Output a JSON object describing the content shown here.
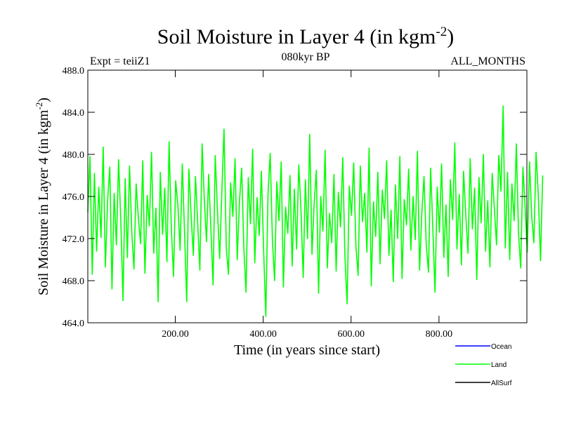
{
  "chart_data": {
    "type": "line",
    "title": "Soil Moisture in Layer 4 (in kgm",
    "title_sup": "-2",
    "title_end": ")",
    "subtitle": "080kyr BP",
    "left_label": "Expt = teiiZ1",
    "right_label": "ALL_MONTHS",
    "xlabel": "Time (in years since start)",
    "ylabel": "Soil Moisture in Layer 4 (in kgm",
    "ylabel_sup": "-2",
    "ylabel_end": ")",
    "xlim": [
      1,
      1000
    ],
    "ylim": [
      464.0,
      488.0
    ],
    "x_ticks": [
      200,
      400,
      600,
      800
    ],
    "x_tick_labels": [
      "200.00",
      "400.00",
      "600.00",
      "800.00"
    ],
    "y_ticks": [
      464,
      468,
      472,
      476,
      480,
      484,
      488
    ],
    "y_tick_labels": [
      "464.0",
      "468.0",
      "472.0",
      "476.0",
      "480.0",
      "484.0",
      "488.0"
    ],
    "legend_position": "bottom-right",
    "legend": [
      {
        "name": "Ocean",
        "color": "#0000ff"
      },
      {
        "name": "Land",
        "color": "#00ff00"
      },
      {
        "name": "AllSurf",
        "color": "#000000"
      }
    ],
    "series": [
      {
        "name": "Land",
        "color": "#00ff00",
        "x_start": 1,
        "x_step": 5,
        "values": [
          474.5,
          479.8,
          468.6,
          478.2,
          470.8,
          476.9,
          472.1,
          480.7,
          469.3,
          475.6,
          478.8,
          467.2,
          476.3,
          471.4,
          479.5,
          473.8,
          466.1,
          477.7,
          470.2,
          478.9,
          472.6,
          469.1,
          477.2,
          474.0,
          471.5,
          479.4,
          468.7,
          476.1,
          473.2,
          480.2,
          470.6,
          474.9,
          466.0,
          478.3,
          472.4,
          476.8,
          469.8,
          481.2,
          473.0,
          468.4,
          477.5,
          475.1,
          470.9,
          479.1,
          472.8,
          466.0,
          478.6,
          474.3,
          470.4,
          477.9,
          473.5,
          469.0,
          481.0,
          475.8,
          471.7,
          478.1,
          472.9,
          467.6,
          479.9,
          474.6,
          470.1,
          476.5,
          482.4,
          471.2,
          468.6,
          477.3,
          474.1,
          479.6,
          470.0,
          475.4,
          478.7,
          471.1,
          466.9,
          477.8,
          473.4,
          480.5,
          469.7,
          475.9,
          472.3,
          478.4,
          470.8,
          464.6,
          476.2,
          480.1,
          471.8,
          468.0,
          477.4,
          473.7,
          479.3,
          467.4,
          475.0,
          472.5,
          478.0,
          469.4,
          476.7,
          471.0,
          479.0,
          474.8,
          468.3,
          477.6,
          472.0,
          481.9,
          470.5,
          475.3,
          478.5,
          466.8,
          476.0,
          472.7,
          480.4,
          469.2,
          474.4,
          471.6,
          478.1,
          468.9,
          476.4,
          473.1,
          479.7,
          470.3,
          465.8,
          477.0,
          474.2,
          479.2,
          471.3,
          468.5,
          478.9,
          473.6,
          476.3,
          470.7,
          480.6,
          467.5,
          475.5,
          472.2,
          478.3,
          469.6,
          476.6,
          473.9,
          479.4,
          470.4,
          474.7,
          467.9,
          477.1,
          472.0,
          479.8,
          468.2,
          475.7,
          473.3,
          478.6,
          470.9,
          476.0,
          471.9,
          480.3,
          469.0,
          474.5,
          477.9,
          471.5,
          468.8,
          478.7,
          473.0,
          466.9,
          476.9,
          472.6,
          479.1,
          470.2,
          475.2,
          468.4,
          477.6,
          473.8,
          481.1,
          471.0,
          476.2,
          469.5,
          478.4,
          474.3,
          470.6,
          479.6,
          472.9,
          476.8,
          468.1,
          477.8,
          473.5,
          480.0,
          470.8,
          475.6,
          469.3,
          478.2,
          474.9,
          471.4,
          479.9,
          476.5,
          484.6,
          471.1,
          478.3,
          470.0,
          477.2,
          473.7,
          481.0,
          472.5,
          469.2,
          478.8,
          475.0,
          470.7,
          479.3,
          474.1,
          471.6,
          480.2,
          476.1,
          469.9,
          478.0
        ]
      }
    ]
  }
}
